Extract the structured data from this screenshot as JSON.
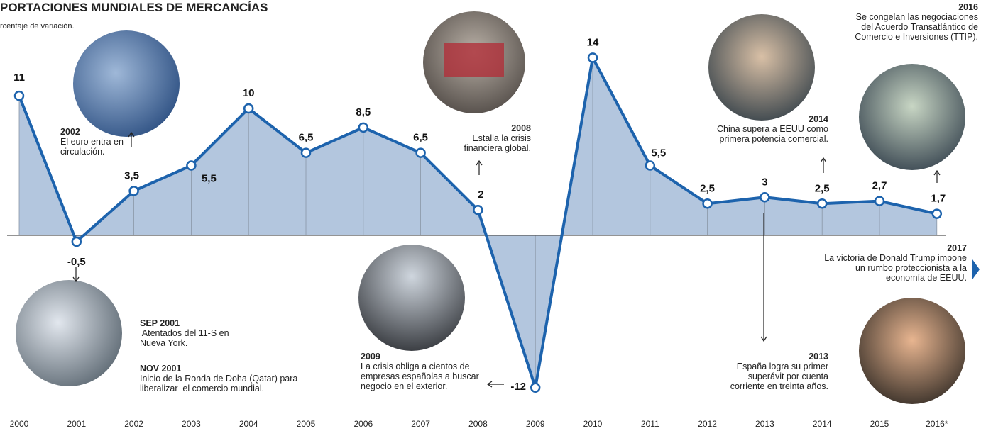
{
  "chart_data": {
    "type": "area-line",
    "title": "PORTACIONES MUNDIALES DE MERCANCÍAS",
    "subtitle": "rcentaje de variación.",
    "categories": [
      "2000",
      "2001",
      "2002",
      "2003",
      "2004",
      "2005",
      "2006",
      "2007",
      "2008",
      "2009",
      "2010",
      "2011",
      "2012",
      "2013",
      "2014",
      "2015",
      "2016*"
    ],
    "values": [
      11,
      -0.5,
      3.5,
      5.5,
      10,
      6.5,
      8.5,
      6.5,
      2,
      -12,
      14,
      5.5,
      2.5,
      3,
      2.5,
      2.7,
      1.7
    ],
    "value_labels": [
      "11",
      "-0,5",
      "3,5",
      "5,5",
      "10",
      "6,5",
      "8,5",
      "6,5",
      "2",
      "-12",
      "14",
      "5,5",
      "2,5",
      "3",
      "2,5",
      "2,7",
      "1,7"
    ],
    "color": "#1d63ad",
    "fill_color": "#b3c6de",
    "annotations": [
      {
        "heading": "2002",
        "lines": [
          "El euro entra en",
          "circulación."
        ]
      },
      {
        "heading": "2008",
        "lines": [
          "Estalla la crisis",
          "financiera global."
        ]
      },
      {
        "heading": "2014",
        "lines": [
          "China supera a EEUU como",
          "primera potencia comercial."
        ]
      },
      {
        "heading": "2016",
        "lines": [
          "Se congelan las negociaciones",
          "del Acuerdo Transatlántico de",
          "Comercio e Inversiones (TTIP)."
        ]
      },
      {
        "heading": "2017",
        "lines": [
          "La victoria de Donald Trump impone",
          "un rumbo proteccionista a la",
          "economía de EEUU."
        ]
      },
      {
        "heading": "SEP 2001",
        "lines": [
          " Atentados del 11-S en",
          "Nueva York."
        ]
      },
      {
        "heading": "NOV 2001",
        "lines": [
          "Inicio de la Ronda de Doha (Qatar) para",
          "liberalizar  el comercio mundial."
        ]
      },
      {
        "heading": "2009",
        "lines": [
          "La crisis obliga a cientos de",
          "empresas españolas a buscar",
          "negocio en el exterior."
        ]
      },
      {
        "heading": "2013",
        "lines": [
          "España logra su primer",
          "superávit por cuenta",
          "corriente en treinta años."
        ]
      }
    ]
  }
}
